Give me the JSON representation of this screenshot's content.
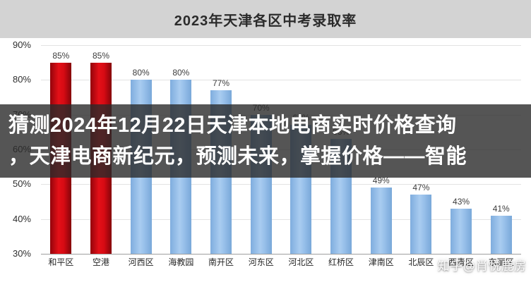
{
  "chart_data": {
    "type": "bar",
    "title": "2023年天津各区中考录取率",
    "categories": [
      "和平区",
      "空港",
      "河西区",
      "海教园",
      "南开区",
      "河东区",
      "河北区",
      "红桥区",
      "津南区",
      "北辰区",
      "西青区",
      "东丽区"
    ],
    "values": [
      85,
      85,
      80,
      80,
      77,
      70,
      67,
      63,
      49,
      47,
      43,
      41
    ],
    "ylim": [
      30,
      90
    ],
    "ytick_step": 10,
    "ylabel_suffix": "%",
    "grid": true,
    "highlight_indices": [
      0,
      1
    ],
    "color_highlight_bar": "#d60a13",
    "color_default_bar": "#9cc3ec"
  },
  "overlay": {
    "line1": "猜测2024年12月22日天津本地电商实时价格查询",
    "line2": "，天津电商新纪元，预测未来，掌握价格——智能"
  },
  "watermark": {
    "text": "知乎@肖悦鹿房"
  }
}
